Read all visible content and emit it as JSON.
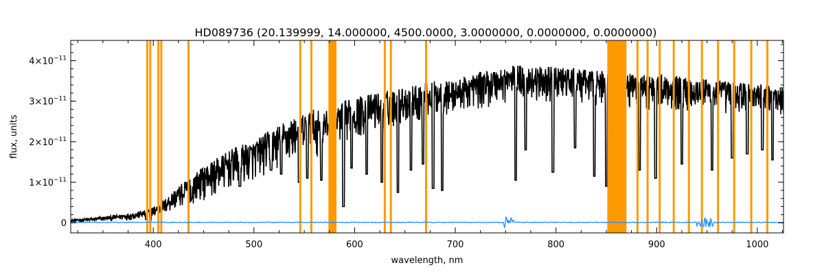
{
  "chart_data": {
    "type": "line",
    "title": "HD089736    (20.139999, 14.000000, 4500.0000, 3.0000000, 0.0000000, 0.0000000)",
    "xlabel": "wavelength, nm",
    "ylabel": "flux, units",
    "xlim": [
      318,
      1026
    ],
    "ylim": [
      -2.5e-12,
      4.5e-11
    ],
    "grid": false,
    "x_ticks": [
      {
        "value": 400,
        "label": "400"
      },
      {
        "value": 500,
        "label": "500"
      },
      {
        "value": 600,
        "label": "600"
      },
      {
        "value": 700,
        "label": "700"
      },
      {
        "value": 800,
        "label": "800"
      },
      {
        "value": 900,
        "label": "900"
      },
      {
        "value": 1000,
        "label": "1000"
      }
    ],
    "y_ticks": [
      {
        "value": 0,
        "mant": "0",
        "exp": ""
      },
      {
        "value": 1e-11,
        "mant": "1×10",
        "exp": "−11"
      },
      {
        "value": 2e-11,
        "mant": "2×10",
        "exp": "−11"
      },
      {
        "value": 3e-11,
        "mant": "3×10",
        "exp": "−11"
      },
      {
        "value": 4e-11,
        "mant": "4×10",
        "exp": "−11"
      }
    ],
    "colors": {
      "flux": "#000000",
      "error": "#1e90ff",
      "mask": "#ff9900"
    },
    "flux_envelope": {
      "x": [
        318,
        340,
        360,
        380,
        390,
        400,
        410,
        420,
        430,
        440,
        450,
        460,
        470,
        480,
        490,
        500,
        510,
        520,
        530,
        540,
        550,
        560,
        570,
        580,
        590,
        600,
        620,
        640,
        660,
        680,
        700,
        720,
        740,
        760,
        780,
        800,
        820,
        840,
        852,
        870,
        890,
        910,
        930,
        950,
        970,
        990,
        1010,
        1026
      ],
      "upper": [
        8e-13,
        1.2e-12,
        1.8e-12,
        2.5e-12,
        3e-12,
        4e-12,
        5.5e-12,
        8e-12,
        1e-11,
        1.2e-11,
        1.4e-11,
        1.55e-11,
        1.7e-11,
        1.85e-11,
        1.95e-11,
        2e-11,
        2.2e-11,
        2.35e-11,
        2.5e-11,
        2.6e-11,
        2.7e-11,
        2.8e-11,
        2.75e-11,
        2.85e-11,
        3e-11,
        3.1e-11,
        3.2e-11,
        3.3e-11,
        3.4e-11,
        3.5e-11,
        3.5e-11,
        3.7e-11,
        3.8e-11,
        3.9e-11,
        3.85e-11,
        3.85e-11,
        3.8e-11,
        3.75e-11,
        3.75e-11,
        3.7e-11,
        3.65e-11,
        3.65e-11,
        3.6e-11,
        3.55e-11,
        3.5e-11,
        3.45e-11,
        3.4e-11,
        3.35e-11
      ],
      "lower": [
        0.0,
        2e-13,
        4e-13,
        6e-13,
        8e-13,
        1e-12,
        1.5e-12,
        2.5e-12,
        3.5e-12,
        4.5e-12,
        5.5e-12,
        6e-12,
        7e-12,
        8e-12,
        9e-12,
        1e-11,
        1.1e-11,
        1.2e-11,
        1.3e-11,
        1.45e-11,
        1.5e-11,
        1.6e-11,
        1.7e-11,
        1.8e-11,
        1.9e-11,
        2e-11,
        2.2e-11,
        2.3e-11,
        2.45e-11,
        2.55e-11,
        2.65e-11,
        2.75e-11,
        2.85e-11,
        2.95e-11,
        2.95e-11,
        2.95e-11,
        2.9e-11,
        2.85e-11,
        2.8e-11,
        2.8e-11,
        2.75e-11,
        2.75e-11,
        2.7e-11,
        2.7e-11,
        2.65e-11,
        2.6e-11,
        2.6e-11,
        2.55e-11
      ]
    },
    "absorption_lines": [
      {
        "x": 393,
        "depth": 8e-13
      },
      {
        "x": 397,
        "depth": 6e-13
      },
      {
        "x": 430,
        "depth": 7e-12
      },
      {
        "x": 438,
        "depth": 6e-12
      },
      {
        "x": 486,
        "depth": 9e-12
      },
      {
        "x": 517,
        "depth": 1.3e-11
      },
      {
        "x": 527,
        "depth": 1.2e-11
      },
      {
        "x": 545,
        "depth": 1e-11
      },
      {
        "x": 553,
        "depth": 1.1e-11
      },
      {
        "x": 567,
        "depth": 1.05e-11
      },
      {
        "x": 589,
        "depth": 4e-12
      },
      {
        "x": 597,
        "depth": 1.35e-11
      },
      {
        "x": 612,
        "depth": 1.2e-11
      },
      {
        "x": 627,
        "depth": 1e-11
      },
      {
        "x": 643,
        "depth": 7.5e-12
      },
      {
        "x": 656,
        "depth": 1.3e-11
      },
      {
        "x": 668,
        "depth": 1.45e-11
      },
      {
        "x": 678,
        "depth": 8.5e-12
      },
      {
        "x": 687,
        "depth": 8e-12
      },
      {
        "x": 760,
        "depth": 1.05e-11
      },
      {
        "x": 770,
        "depth": 1.8e-11
      },
      {
        "x": 797,
        "depth": 1.25e-11
      },
      {
        "x": 819,
        "depth": 1.85e-11
      },
      {
        "x": 838,
        "depth": 1.15e-11
      },
      {
        "x": 850,
        "depth": 9e-12
      },
      {
        "x": 866,
        "depth": 1.8e-11
      },
      {
        "x": 883,
        "depth": 1.3e-11
      },
      {
        "x": 899,
        "depth": 1.1e-11
      },
      {
        "x": 925,
        "depth": 1.45e-11
      },
      {
        "x": 955,
        "depth": 1.3e-11
      },
      {
        "x": 975,
        "depth": 1.6e-11
      },
      {
        "x": 990,
        "depth": 1.7e-11
      },
      {
        "x": 1005,
        "depth": 1.8e-11
      },
      {
        "x": 1015,
        "depth": 1.55e-11
      }
    ],
    "mask_lines": [
      394,
      397,
      405,
      408,
      435,
      546,
      557,
      630,
      636,
      671,
      881,
      891,
      903,
      917,
      932,
      945,
      961,
      977,
      994,
      1010
    ],
    "mask_bands": [
      [
        574,
        582
      ],
      [
        851,
        870
      ]
    ],
    "error_series": {
      "base": 1e-13,
      "noise_bursts": [
        [
          748,
          758
        ],
        [
          940,
          956
        ]
      ]
    }
  }
}
